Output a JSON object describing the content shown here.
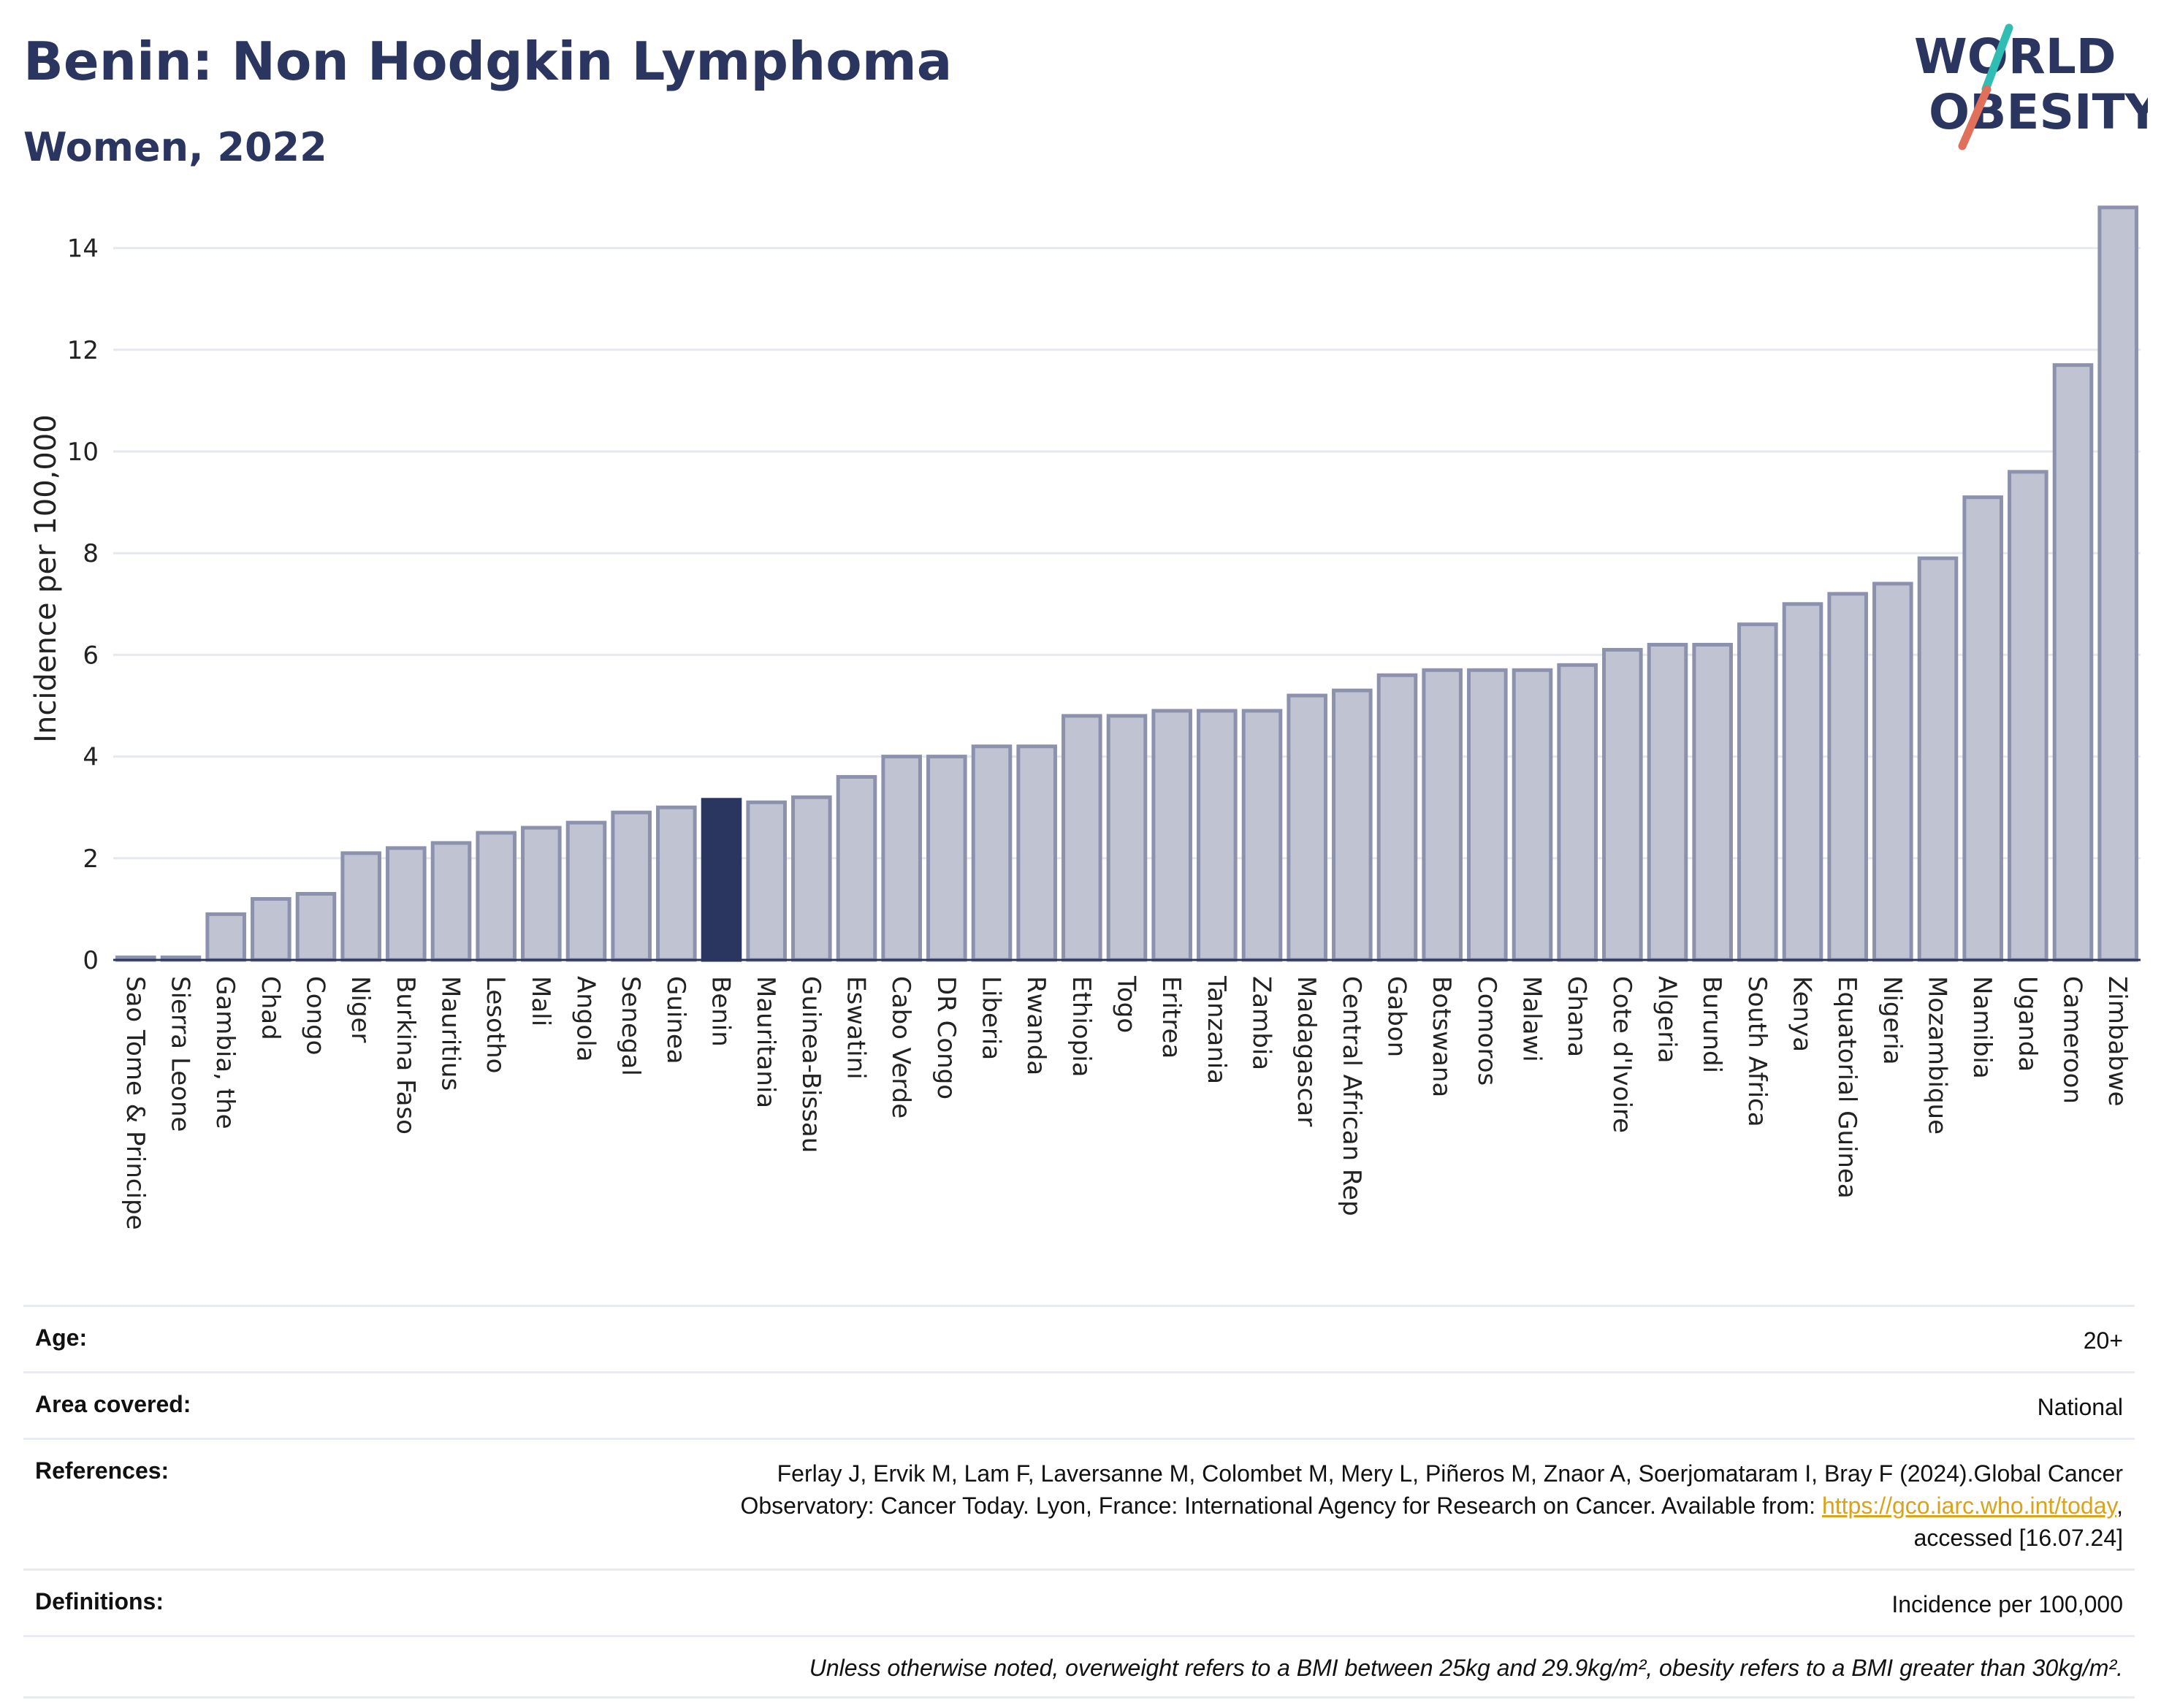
{
  "header": {
    "title": "Benin: Non Hodgkin Lymphoma",
    "subtitle": "Women, 2022"
  },
  "logo": {
    "line1": "WORLD",
    "line2": "OBESITY",
    "accent_colors": [
      "#2fbdb4",
      "#e0705a"
    ]
  },
  "colors": {
    "bar": "#c0c4d2",
    "bar_border": "#8c92ad",
    "highlight": "#2b3660",
    "grid": "#e6e8ef",
    "text": "#2b3660"
  },
  "chart_data": {
    "type": "bar",
    "title": "",
    "xlabel": "",
    "ylabel": "Incidence per 100,000",
    "ylim": [
      0,
      15
    ],
    "yticks": [
      0,
      2,
      4,
      6,
      8,
      10,
      12,
      14
    ],
    "grid": true,
    "highlight": "Benin",
    "categories": [
      "Sao Tome & Principe",
      "Sierra Leone",
      "Gambia, the",
      "Chad",
      "Congo",
      "Niger",
      "Burkina Faso",
      "Mauritius",
      "Lesotho",
      "Mali",
      "Angola",
      "Senegal",
      "Guinea",
      "Benin",
      "Mauritania",
      "Guinea-Bissau",
      "Eswatini",
      "Cabo Verde",
      "DR Congo",
      "Liberia",
      "Rwanda",
      "Ethiopia",
      "Togo",
      "Eritrea",
      "Tanzania",
      "Zambia",
      "Madagascar",
      "Central African Rep",
      "Gabon",
      "Botswana",
      "Comoros",
      "Malawi",
      "Ghana",
      "Cote d'Ivoire",
      "Algeria",
      "Burundi",
      "South Africa",
      "Kenya",
      "Equatorial Guinea",
      "Nigeria",
      "Mozambique",
      "Namibia",
      "Uganda",
      "Cameroon",
      "Zimbabwe"
    ],
    "values": [
      0.05,
      0.05,
      0.9,
      1.2,
      1.3,
      2.1,
      2.2,
      2.3,
      2.5,
      2.6,
      2.7,
      2.9,
      3.0,
      3.15,
      3.1,
      3.2,
      3.6,
      4.0,
      4.0,
      4.2,
      4.2,
      4.8,
      4.8,
      4.9,
      4.9,
      4.9,
      5.2,
      5.3,
      5.6,
      5.7,
      5.7,
      5.7,
      5.8,
      6.1,
      6.2,
      6.2,
      6.6,
      7.0,
      7.2,
      7.4,
      7.9,
      9.1,
      9.6,
      11.7,
      14.8
    ]
  },
  "meta": {
    "age_label": "Age:",
    "age_value": "20+",
    "area_label": "Area covered:",
    "area_value": "National",
    "references_label": "References:",
    "references_line1": "Ferlay J, Ervik M, Lam F, Laversanne M, Colombet M, Mery L, Piñeros M, Znaor A, Soerjomataram I, Bray F (2024).Global Cancer",
    "references_line2_pre": "Observatory: Cancer Today. Lyon, France: International Agency for Research on Cancer. Available from: ",
    "references_link": "https://gco.iarc.who.int/today",
    "references_line2_post": ",",
    "references_line3": "accessed [16.07.24]",
    "definitions_label": "Definitions:",
    "definitions_value": "Incidence per 100,000",
    "note": "Unless otherwise noted, overweight refers to a BMI between 25kg and 29.9kg/m², obesity refers to a BMI greater than 30kg/m²."
  }
}
